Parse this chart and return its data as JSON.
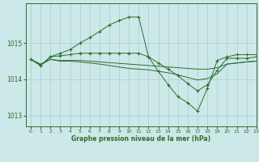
{
  "xlabel": "Graphe pression niveau de la mer (hPa)",
  "background_color": "#cce8e8",
  "grid_color": "#aacccc",
  "line_color": "#2d6e2d",
  "xlim": [
    -0.5,
    23
  ],
  "ylim": [
    1012.7,
    1016.1
  ],
  "yticks": [
    1013,
    1014,
    1015
  ],
  "xticks": [
    0,
    1,
    2,
    3,
    4,
    5,
    6,
    7,
    8,
    9,
    10,
    11,
    12,
    13,
    14,
    15,
    16,
    17,
    18,
    19,
    20,
    21,
    22,
    23
  ],
  "lines": [
    {
      "x": [
        0,
        1,
        2,
        3,
        4,
        5,
        6,
        7,
        8,
        9,
        10,
        11,
        12,
        13,
        14,
        15,
        16,
        17,
        18,
        19,
        20,
        21,
        22,
        23
      ],
      "y": [
        1014.55,
        1014.38,
        1014.62,
        1014.72,
        1014.82,
        1015.0,
        1015.15,
        1015.32,
        1015.5,
        1015.62,
        1015.72,
        1015.72,
        1014.62,
        1014.22,
        1013.85,
        1013.52,
        1013.35,
        1013.12,
        1013.75,
        1014.52,
        1014.62,
        1014.68,
        1014.68,
        1014.68
      ],
      "marker": "+"
    },
    {
      "x": [
        0,
        1,
        2,
        3,
        4,
        5,
        6,
        7,
        8,
        9,
        10,
        11,
        12,
        13,
        14,
        15,
        16,
        17,
        18,
        19,
        20,
        21,
        22,
        23
      ],
      "y": [
        1014.55,
        1014.38,
        1014.62,
        1014.65,
        1014.68,
        1014.72,
        1014.72,
        1014.72,
        1014.72,
        1014.72,
        1014.72,
        1014.72,
        1014.62,
        1014.45,
        1014.28,
        1014.1,
        1013.88,
        1013.68,
        1013.85,
        1014.25,
        1014.58,
        1014.58,
        1014.58,
        1014.62
      ],
      "marker": "+"
    },
    {
      "x": [
        0,
        1,
        2,
        3,
        4,
        5,
        6,
        7,
        8,
        9,
        10,
        11,
        12,
        13,
        14,
        15,
        16,
        17,
        18,
        19,
        20,
        21,
        22,
        23
      ],
      "y": [
        1014.55,
        1014.42,
        1014.55,
        1014.52,
        1014.52,
        1014.52,
        1014.5,
        1014.48,
        1014.46,
        1014.44,
        1014.42,
        1014.4,
        1014.38,
        1014.36,
        1014.34,
        1014.32,
        1014.3,
        1014.28,
        1014.28,
        1014.32,
        1014.42,
        1014.45,
        1014.48,
        1014.5
      ],
      "marker": null
    },
    {
      "x": [
        0,
        1,
        2,
        3,
        4,
        5,
        6,
        7,
        8,
        9,
        10,
        11,
        12,
        13,
        14,
        15,
        16,
        17,
        18,
        19,
        20,
        21,
        22,
        23
      ],
      "y": [
        1014.55,
        1014.4,
        1014.55,
        1014.5,
        1014.5,
        1014.48,
        1014.45,
        1014.42,
        1014.38,
        1014.34,
        1014.3,
        1014.28,
        1014.26,
        1014.22,
        1014.18,
        1014.12,
        1014.05,
        1013.98,
        1014.02,
        1014.15,
        1014.42,
        1014.45,
        1014.48,
        1014.5
      ],
      "marker": null
    }
  ]
}
